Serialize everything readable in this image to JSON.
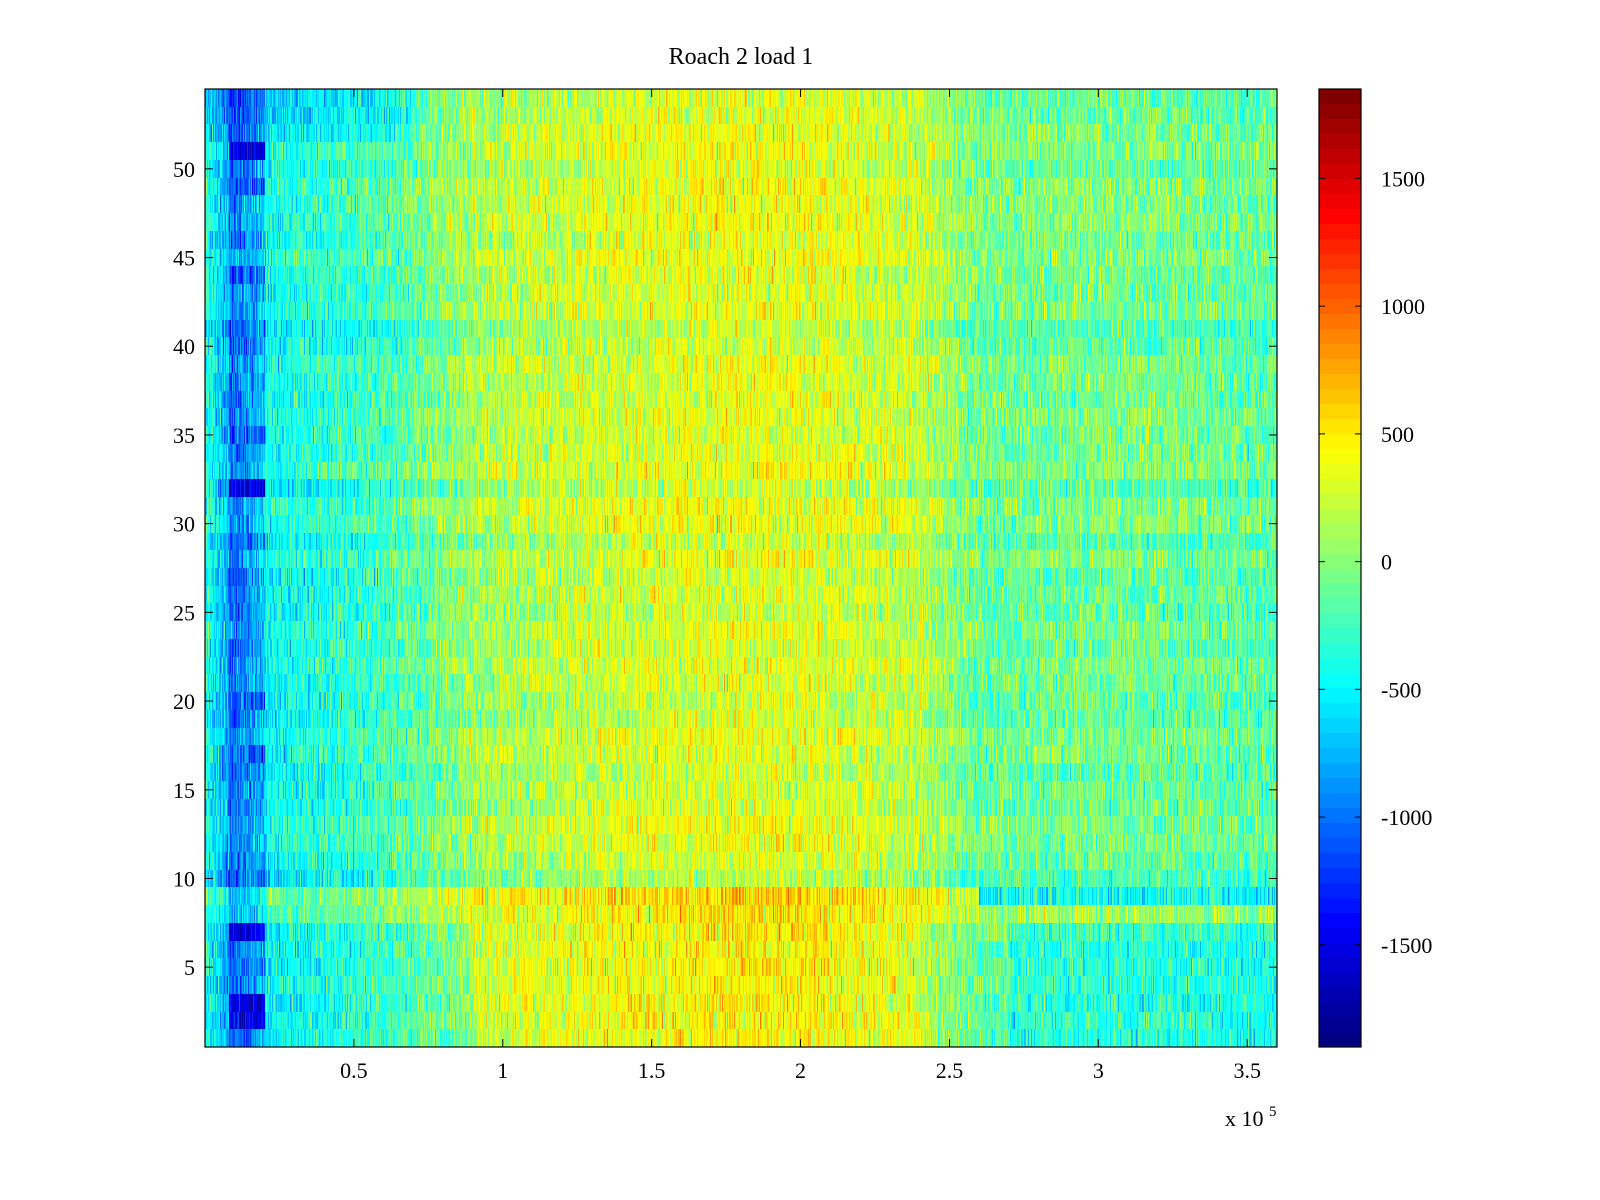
{
  "chart_data": {
    "type": "heatmap",
    "title": "Roach 2 load 1",
    "xlabel": "",
    "ylabel": "",
    "x_range": [
      0,
      360000
    ],
    "x_exponent_label": "x 10",
    "x_exponent": "5",
    "x_ticks": [
      {
        "value": 50000,
        "label": "0.5"
      },
      {
        "value": 100000,
        "label": "1"
      },
      {
        "value": 150000,
        "label": "1.5"
      },
      {
        "value": 200000,
        "label": "2"
      },
      {
        "value": 250000,
        "label": "2.5"
      },
      {
        "value": 300000,
        "label": "3"
      },
      {
        "value": 350000,
        "label": "3.5"
      }
    ],
    "y_range": [
      0.5,
      54.5
    ],
    "y_ticks": [
      {
        "value": 5,
        "label": "5"
      },
      {
        "value": 10,
        "label": "10"
      },
      {
        "value": 15,
        "label": "15"
      },
      {
        "value": 20,
        "label": "20"
      },
      {
        "value": 25,
        "label": "25"
      },
      {
        "value": 30,
        "label": "30"
      },
      {
        "value": 35,
        "label": "35"
      },
      {
        "value": 40,
        "label": "40"
      },
      {
        "value": 45,
        "label": "45"
      },
      {
        "value": 50,
        "label": "50"
      }
    ],
    "rows": 54,
    "colormap": "jet",
    "color_range": [
      -1900,
      1850
    ],
    "colorbar_ticks": [
      {
        "value": 1500,
        "label": "1500"
      },
      {
        "value": 1000,
        "label": "1000"
      },
      {
        "value": 500,
        "label": "500"
      },
      {
        "value": 0,
        "label": "0"
      },
      {
        "value": -500,
        "label": "-500"
      },
      {
        "value": -1000,
        "label": "-1000"
      },
      {
        "value": -1500,
        "label": "-1500"
      }
    ],
    "grid": false,
    "column_profile": [
      {
        "x": 0,
        "mean": -350
      },
      {
        "x": 8000,
        "mean": -800
      },
      {
        "x": 20000,
        "mean": -450
      },
      {
        "x": 60000,
        "mean": -250
      },
      {
        "x": 90000,
        "mean": 100
      },
      {
        "x": 130000,
        "mean": 250
      },
      {
        "x": 180000,
        "mean": 350
      },
      {
        "x": 210000,
        "mean": 300
      },
      {
        "x": 240000,
        "mean": 200
      },
      {
        "x": 260000,
        "mean": -100
      },
      {
        "x": 300000,
        "mean": -50
      },
      {
        "x": 360000,
        "mean": -150
      }
    ],
    "dark_columns": [
      {
        "x_start": 8000,
        "x_end": 20000
      }
    ],
    "blue_rows": [
      3,
      7,
      17,
      20,
      32,
      35,
      44,
      49,
      51
    ],
    "strong_blue_rows": [
      2,
      3,
      7,
      32,
      51
    ],
    "row_bands": [
      {
        "rows": [
          9
        ],
        "x_start": 0,
        "x_end": 260000,
        "shift": 250
      },
      {
        "rows": [
          9
        ],
        "x_start": 260000,
        "x_end": 360000,
        "shift": -400
      },
      {
        "rows": [
          8
        ],
        "x_start": 0,
        "x_end": 360000,
        "shift": 120
      },
      {
        "rows": [
          1,
          2,
          3,
          4,
          5,
          6,
          7
        ],
        "x_start": 90000,
        "x_end": 240000,
        "shift": 200
      },
      {
        "rows": [
          1,
          2,
          3,
          4,
          5,
          6,
          7
        ],
        "x_start": 270000,
        "x_end": 360000,
        "shift": -200
      },
      {
        "rows": [
          52,
          53,
          54
        ],
        "x_start": 0,
        "x_end": 70000,
        "shift": -200
      }
    ]
  }
}
